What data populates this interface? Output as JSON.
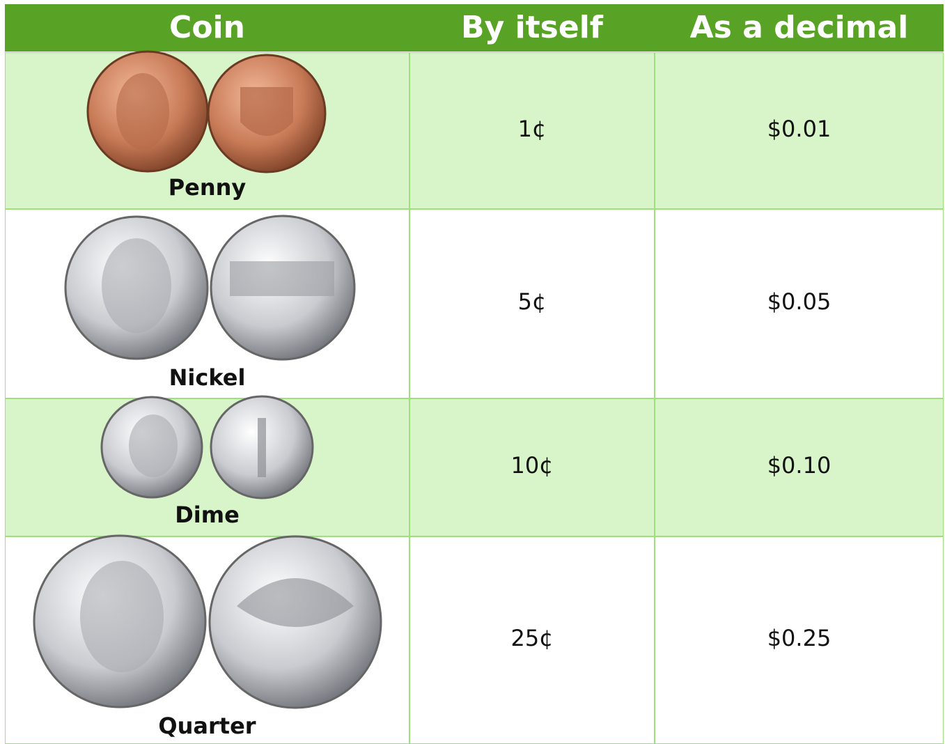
{
  "table": {
    "header": [
      "Coin",
      "By itself",
      "As a decimal"
    ],
    "rows": [
      [
        "Penny",
        "1¢",
        "$0.01"
      ],
      [
        "Nickel",
        "5¢",
        "$0.05"
      ],
      [
        "Dime",
        "10¢",
        "$0.10"
      ],
      [
        "Quarter",
        "25¢",
        "$0.25"
      ]
    ]
  }
}
